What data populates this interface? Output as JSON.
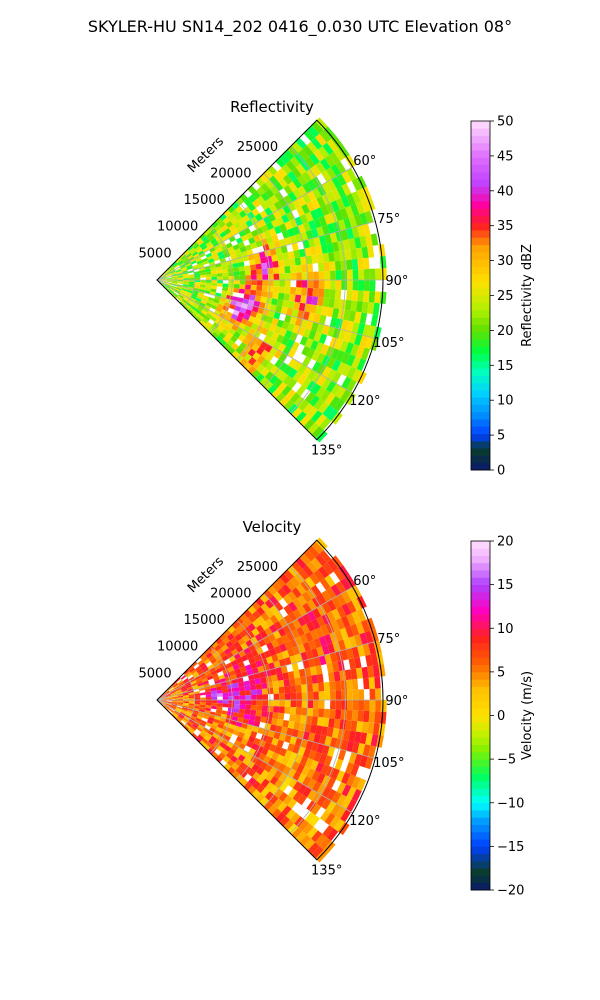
{
  "figure_title": "SKYLER-HU  SN14_202  0416_0.030 UTC Elevation 08°",
  "colors": {
    "grid": "#b0b0b0",
    "axis": "#000000"
  },
  "chart_data": [
    {
      "type": "heatmap",
      "projection": "polar-sector",
      "title": "Reflectivity",
      "radial_label": "Meters",
      "radial_ticks": [
        5000,
        10000,
        15000,
        20000,
        25000
      ],
      "radial_tick_labels": [
        "5000",
        "10000",
        "15000",
        "20000",
        "25000"
      ],
      "rlim": [
        0,
        30000
      ],
      "angle_range_deg": [
        45,
        135
      ],
      "angle_ticks": [
        60,
        75,
        90,
        105,
        120,
        135
      ],
      "angle_tick_labels": [
        "60°",
        "75°",
        "90°",
        "105°",
        "120°",
        "135°"
      ],
      "grid": true,
      "colorbar": {
        "label": "Reflectivity dBZ",
        "range": [
          0,
          50
        ],
        "ticks": [
          0,
          5,
          10,
          15,
          20,
          25,
          30,
          35,
          40,
          45,
          50
        ],
        "tick_labels": [
          "0",
          "5",
          "10",
          "15",
          "20",
          "25",
          "30",
          "35",
          "40",
          "45",
          "50"
        ],
        "stops": [
          [
            0,
            "#0a1a6e"
          ],
          [
            3,
            "#0a3d2a"
          ],
          [
            5,
            "#0040ff"
          ],
          [
            8,
            "#0090ff"
          ],
          [
            11,
            "#00d0ff"
          ],
          [
            14,
            "#00ffc0"
          ],
          [
            17,
            "#00ff40"
          ],
          [
            20,
            "#60e000"
          ],
          [
            23,
            "#b0f000"
          ],
          [
            27,
            "#ffe000"
          ],
          [
            32,
            "#ffa000"
          ],
          [
            35,
            "#ff2020"
          ],
          [
            38,
            "#ff00a0"
          ],
          [
            41,
            "#c040ff"
          ],
          [
            45,
            "#e070ff"
          ],
          [
            50,
            "#ffe0ff"
          ]
        ]
      },
      "field": {
        "base": 22,
        "variation": 6,
        "range_max_m": [
          29000,
          31000
        ],
        "cells": [
          {
            "az": 82,
            "r": 14000,
            "value": 40
          },
          {
            "az": 95,
            "r": 20000,
            "value": 38
          },
          {
            "az": 110,
            "r": 11000,
            "value": 42
          },
          {
            "az": 100,
            "r": 12500,
            "value": 36
          },
          {
            "az": 123,
            "r": 16000,
            "value": 34
          }
        ]
      }
    },
    {
      "type": "heatmap",
      "projection": "polar-sector",
      "title": "Velocity",
      "radial_label": "Meters",
      "radial_ticks": [
        5000,
        10000,
        15000,
        20000,
        25000
      ],
      "radial_tick_labels": [
        "5000",
        "10000",
        "15000",
        "20000",
        "25000"
      ],
      "rlim": [
        0,
        30000
      ],
      "angle_range_deg": [
        45,
        135
      ],
      "angle_ticks": [
        60,
        75,
        90,
        105,
        120,
        135
      ],
      "angle_tick_labels": [
        "60°",
        "75°",
        "90°",
        "105°",
        "120°",
        "135°"
      ],
      "grid": true,
      "colorbar": {
        "label": "Velocity (m/s)",
        "range": [
          -20,
          20
        ],
        "ticks": [
          -20,
          -15,
          -10,
          -5,
          0,
          5,
          10,
          15,
          20
        ],
        "tick_labels": [
          "−20",
          "−15",
          "−10",
          "−5",
          "0",
          "5",
          "10",
          "15",
          "20"
        ],
        "stops": [
          [
            -20,
            "#0a1a6e"
          ],
          [
            -18,
            "#0a3d2a"
          ],
          [
            -15,
            "#0040ff"
          ],
          [
            -12,
            "#00a0ff"
          ],
          [
            -10,
            "#00ffff"
          ],
          [
            -7,
            "#00ff60"
          ],
          [
            -4,
            "#80f000"
          ],
          [
            -2,
            "#c8f000"
          ],
          [
            0,
            "#ffe000"
          ],
          [
            3,
            "#ffc000"
          ],
          [
            6,
            "#ff6000"
          ],
          [
            9,
            "#ff2020"
          ],
          [
            12,
            "#ff00c0"
          ],
          [
            15,
            "#b040ff"
          ],
          [
            18,
            "#f0b0ff"
          ],
          [
            20,
            "#ffe0ff"
          ]
        ]
      },
      "field": {
        "base": 6,
        "variation": 4,
        "range_max_m": [
          29000,
          31000
        ],
        "cells": [
          {
            "az": 75,
            "r": 12000,
            "value": 13
          },
          {
            "az": 85,
            "r": 8000,
            "value": 14
          },
          {
            "az": 92,
            "r": 11000,
            "value": 12
          },
          {
            "az": 70,
            "r": 22000,
            "value": 8
          },
          {
            "az": 120,
            "r": 20000,
            "value": 3
          },
          {
            "az": 130,
            "r": 26000,
            "value": 2
          }
        ]
      }
    }
  ]
}
